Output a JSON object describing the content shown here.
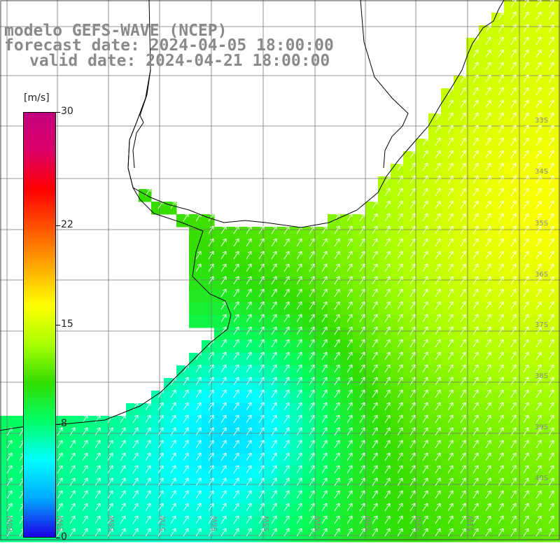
{
  "title": {
    "line1": "modelo GEFS-WAVE (NCEP)",
    "line2": "forecast date: 2024-04-05 18:00:00",
    "line3": "valid date: 2024-04-21 18:00:00"
  },
  "colorbar": {
    "units": "[m/s]",
    "min": 0,
    "max": 30,
    "ticks": [
      {
        "value": 30,
        "label": "30"
      },
      {
        "value": 22,
        "label": "22"
      },
      {
        "value": 15,
        "label": "15"
      },
      {
        "value": 8,
        "label": "8"
      },
      {
        "value": 0,
        "label": "0"
      }
    ],
    "stops": [
      "#1a00e6",
      "#00aaff",
      "#00ffff",
      "#00ff66",
      "#33dd00",
      "#aaff00",
      "#ffff00",
      "#ffaa00",
      "#ff5500",
      "#ff0000",
      "#dd0066",
      "#c0007f"
    ]
  },
  "map": {
    "lon_range": [
      -61,
      -50
    ],
    "lat_range": [
      -41,
      -31
    ],
    "lat_labels": [
      "33S",
      "34S",
      "35S",
      "36S",
      "37S",
      "38S",
      "39S",
      "40S"
    ],
    "lon_labels": [
      "60W",
      "59W",
      "58W",
      "57W",
      "56W",
      "55W",
      "54W",
      "53W",
      "52W",
      "51W"
    ],
    "land_color": "#ffffff",
    "grid_color": "#777777",
    "arrow_color": "#ffffff",
    "wind_direction": "toward north-northeast"
  }
}
